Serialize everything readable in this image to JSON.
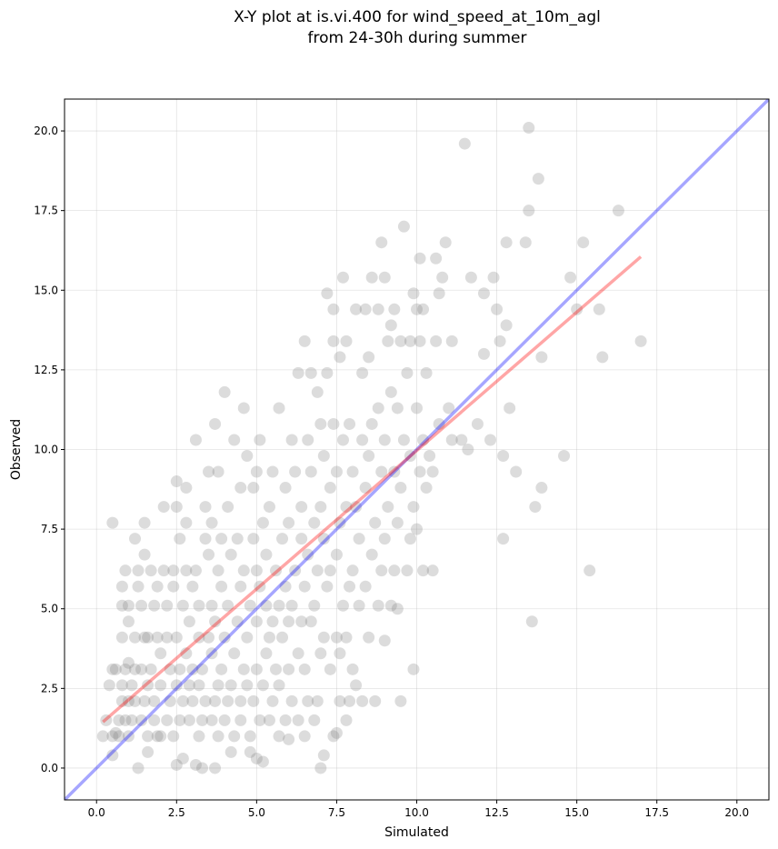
{
  "chart_data": {
    "type": "scatter",
    "title_lines": [
      "X-Y plot at is.vi.400 for wind_speed_at_10m_agl",
      "from 24-30h during summer"
    ],
    "xlabel": "Simulated",
    "ylabel": "Observed",
    "xlim": [
      -1.0,
      21.0
    ],
    "ylim": [
      -1.0,
      21.0
    ],
    "xticks": [
      0.0,
      2.5,
      5.0,
      7.5,
      10.0,
      12.5,
      15.0,
      17.5,
      20.0
    ],
    "yticks": [
      0.0,
      2.5,
      5.0,
      7.5,
      10.0,
      12.5,
      15.0,
      17.5,
      20.0
    ],
    "xtick_labels": [
      "0.0",
      "2.5",
      "5.0",
      "7.5",
      "10.0",
      "12.5",
      "15.0",
      "17.5",
      "20.0"
    ],
    "ytick_labels": [
      "0.0",
      "2.5",
      "5.0",
      "7.5",
      "10.0",
      "12.5",
      "15.0",
      "17.5",
      "20.0"
    ],
    "grid": true,
    "colors": {
      "points": "#808080",
      "one_to_one": "#0000ff",
      "fit": "#ff0000"
    },
    "one_to_one_line": {
      "x": [
        -1.0,
        21.0
      ],
      "y": [
        -1.0,
        21.0
      ]
    },
    "fit_line": {
      "x": [
        0.2,
        17.0
      ],
      "y": [
        1.45,
        16.05
      ]
    },
    "points": [
      [
        0.2,
        1.0
      ],
      [
        0.3,
        1.5
      ],
      [
        0.4,
        2.6
      ],
      [
        0.5,
        0.4
      ],
      [
        0.5,
        1.0
      ],
      [
        0.5,
        3.1
      ],
      [
        0.5,
        7.7
      ],
      [
        0.6,
        1.1
      ],
      [
        0.6,
        3.1
      ],
      [
        0.7,
        1.0
      ],
      [
        0.7,
        1.5
      ],
      [
        0.8,
        2.1
      ],
      [
        0.8,
        2.6
      ],
      [
        0.8,
        4.1
      ],
      [
        0.8,
        5.1
      ],
      [
        0.8,
        5.7
      ],
      [
        0.9,
        6.2
      ],
      [
        0.9,
        3.1
      ],
      [
        0.9,
        1.5
      ],
      [
        1.0,
        2.1
      ],
      [
        1.0,
        4.6
      ],
      [
        1.0,
        5.1
      ],
      [
        1.0,
        3.3
      ],
      [
        1.0,
        1.0
      ],
      [
        1.1,
        2.6
      ],
      [
        1.1,
        1.5
      ],
      [
        1.2,
        2.1
      ],
      [
        1.2,
        4.1
      ],
      [
        1.2,
        7.2
      ],
      [
        1.2,
        3.1
      ],
      [
        1.3,
        0.0
      ],
      [
        1.3,
        5.7
      ],
      [
        1.3,
        6.2
      ],
      [
        1.4,
        1.5
      ],
      [
        1.4,
        3.1
      ],
      [
        1.4,
        5.1
      ],
      [
        1.5,
        4.1
      ],
      [
        1.5,
        6.7
      ],
      [
        1.5,
        7.7
      ],
      [
        1.5,
        2.1
      ],
      [
        1.6,
        0.5
      ],
      [
        1.6,
        1.0
      ],
      [
        1.6,
        2.6
      ],
      [
        1.6,
        4.1
      ],
      [
        1.7,
        3.1
      ],
      [
        1.7,
        6.2
      ],
      [
        1.8,
        1.5
      ],
      [
        1.8,
        5.1
      ],
      [
        1.8,
        2.1
      ],
      [
        1.9,
        1.0
      ],
      [
        1.9,
        4.1
      ],
      [
        1.9,
        5.7
      ],
      [
        2.0,
        2.6
      ],
      [
        2.0,
        3.6
      ],
      [
        2.0,
        1.0
      ],
      [
        2.1,
        6.2
      ],
      [
        2.1,
        8.2
      ],
      [
        2.2,
        1.5
      ],
      [
        2.2,
        4.1
      ],
      [
        2.2,
        5.1
      ],
      [
        2.3,
        2.1
      ],
      [
        2.3,
        3.1
      ],
      [
        2.4,
        1.0
      ],
      [
        2.4,
        5.7
      ],
      [
        2.4,
        6.2
      ],
      [
        2.5,
        0.1
      ],
      [
        2.5,
        2.6
      ],
      [
        2.5,
        4.1
      ],
      [
        2.5,
        9.0
      ],
      [
        2.5,
        8.2
      ],
      [
        2.6,
        1.5
      ],
      [
        2.6,
        3.1
      ],
      [
        2.6,
        7.2
      ],
      [
        2.7,
        0.3
      ],
      [
        2.7,
        2.1
      ],
      [
        2.7,
        5.1
      ],
      [
        2.8,
        3.6
      ],
      [
        2.8,
        6.2
      ],
      [
        2.8,
        8.8
      ],
      [
        2.8,
        7.7
      ],
      [
        2.9,
        1.5
      ],
      [
        2.9,
        4.6
      ],
      [
        2.9,
        2.6
      ],
      [
        3.0,
        2.1
      ],
      [
        3.0,
        3.1
      ],
      [
        3.0,
        5.7
      ],
      [
        3.1,
        0.1
      ],
      [
        3.1,
        6.2
      ],
      [
        3.1,
        10.3
      ],
      [
        3.2,
        1.0
      ],
      [
        3.2,
        2.6
      ],
      [
        3.2,
        4.1
      ],
      [
        3.2,
        5.1
      ],
      [
        3.3,
        0.0
      ],
      [
        3.3,
        1.5
      ],
      [
        3.3,
        3.1
      ],
      [
        3.4,
        2.1
      ],
      [
        3.4,
        7.2
      ],
      [
        3.4,
        8.2
      ],
      [
        3.5,
        4.1
      ],
      [
        3.5,
        6.7
      ],
      [
        3.5,
        9.3
      ],
      [
        3.6,
        1.5
      ],
      [
        3.6,
        3.6
      ],
      [
        3.6,
        5.1
      ],
      [
        3.6,
        7.7
      ],
      [
        3.7,
        0.0
      ],
      [
        3.7,
        2.1
      ],
      [
        3.7,
        4.6
      ],
      [
        3.7,
        10.8
      ],
      [
        3.8,
        1.0
      ],
      [
        3.8,
        2.6
      ],
      [
        3.8,
        6.2
      ],
      [
        3.8,
        9.3
      ],
      [
        3.9,
        3.1
      ],
      [
        3.9,
        5.7
      ],
      [
        3.9,
        7.2
      ],
      [
        4.0,
        1.5
      ],
      [
        4.0,
        4.1
      ],
      [
        4.0,
        11.8
      ],
      [
        4.1,
        2.1
      ],
      [
        4.1,
        5.1
      ],
      [
        4.1,
        8.2
      ],
      [
        4.2,
        0.5
      ],
      [
        4.2,
        2.6
      ],
      [
        4.2,
        6.7
      ],
      [
        4.3,
        1.0
      ],
      [
        4.3,
        3.6
      ],
      [
        4.3,
        10.3
      ],
      [
        4.4,
        4.6
      ],
      [
        4.4,
        7.2
      ],
      [
        4.5,
        1.5
      ],
      [
        4.5,
        2.1
      ],
      [
        4.5,
        5.7
      ],
      [
        4.5,
        8.8
      ],
      [
        4.6,
        3.1
      ],
      [
        4.6,
        6.2
      ],
      [
        4.6,
        11.3
      ],
      [
        4.7,
        2.6
      ],
      [
        4.7,
        4.1
      ],
      [
        4.7,
        9.8
      ],
      [
        4.8,
        0.5
      ],
      [
        4.8,
        1.0
      ],
      [
        4.8,
        5.1
      ],
      [
        4.9,
        2.1
      ],
      [
        4.9,
        7.2
      ],
      [
        4.9,
        8.8
      ],
      [
        5.0,
        0.3
      ],
      [
        5.0,
        3.1
      ],
      [
        5.0,
        4.6
      ],
      [
        5.0,
        6.2
      ],
      [
        5.0,
        9.3
      ],
      [
        5.1,
        1.5
      ],
      [
        5.1,
        5.7
      ],
      [
        5.1,
        10.3
      ],
      [
        5.2,
        0.2
      ],
      [
        5.2,
        2.6
      ],
      [
        5.2,
        7.7
      ],
      [
        5.3,
        3.6
      ],
      [
        5.3,
        5.1
      ],
      [
        5.3,
        6.7
      ],
      [
        5.4,
        1.5
      ],
      [
        5.4,
        4.1
      ],
      [
        5.4,
        8.2
      ],
      [
        5.5,
        2.1
      ],
      [
        5.5,
        4.6
      ],
      [
        5.5,
        9.3
      ],
      [
        5.6,
        3.1
      ],
      [
        5.6,
        6.2
      ],
      [
        5.7,
        1.0
      ],
      [
        5.7,
        2.6
      ],
      [
        5.7,
        5.1
      ],
      [
        5.7,
        11.3
      ],
      [
        5.8,
        4.1
      ],
      [
        5.8,
        7.2
      ],
      [
        5.9,
        1.5
      ],
      [
        5.9,
        5.7
      ],
      [
        5.9,
        8.8
      ],
      [
        6.0,
        0.9
      ],
      [
        6.0,
        3.1
      ],
      [
        6.0,
        4.6
      ],
      [
        6.0,
        7.7
      ],
      [
        6.1,
        2.1
      ],
      [
        6.1,
        5.1
      ],
      [
        6.1,
        10.3
      ],
      [
        6.2,
        6.2
      ],
      [
        6.2,
        9.3
      ],
      [
        6.3,
        1.5
      ],
      [
        6.3,
        3.6
      ],
      [
        6.3,
        12.4
      ],
      [
        6.4,
        4.6
      ],
      [
        6.4,
        7.2
      ],
      [
        6.4,
        8.2
      ],
      [
        6.5,
        1.0
      ],
      [
        6.5,
        3.1
      ],
      [
        6.5,
        5.7
      ],
      [
        6.5,
        13.4
      ],
      [
        6.6,
        2.1
      ],
      [
        6.6,
        6.7
      ],
      [
        6.6,
        10.3
      ],
      [
        6.7,
        4.6
      ],
      [
        6.7,
        9.3
      ],
      [
        6.7,
        12.4
      ],
      [
        6.8,
        1.5
      ],
      [
        6.8,
        5.1
      ],
      [
        6.8,
        7.7
      ],
      [
        6.9,
        2.1
      ],
      [
        6.9,
        6.2
      ],
      [
        6.9,
        11.8
      ],
      [
        7.0,
        0.0
      ],
      [
        7.0,
        3.6
      ],
      [
        7.0,
        8.2
      ],
      [
        7.0,
        10.8
      ],
      [
        7.1,
        0.4
      ],
      [
        7.1,
        4.1
      ],
      [
        7.1,
        7.2
      ],
      [
        7.1,
        9.8
      ],
      [
        7.2,
        5.7
      ],
      [
        7.2,
        12.4
      ],
      [
        7.2,
        14.9
      ],
      [
        7.3,
        3.1
      ],
      [
        7.3,
        6.2
      ],
      [
        7.3,
        8.8
      ],
      [
        7.4,
        1.0
      ],
      [
        7.4,
        10.8
      ],
      [
        7.4,
        13.4
      ],
      [
        7.4,
        14.4
      ],
      [
        7.5,
        1.1
      ],
      [
        7.5,
        4.1
      ],
      [
        7.5,
        6.7
      ],
      [
        7.5,
        9.3
      ],
      [
        7.6,
        2.1
      ],
      [
        7.6,
        3.6
      ],
      [
        7.6,
        7.7
      ],
      [
        7.6,
        12.9
      ],
      [
        7.7,
        5.1
      ],
      [
        7.7,
        10.3
      ],
      [
        7.7,
        15.4
      ],
      [
        7.8,
        1.5
      ],
      [
        7.8,
        4.1
      ],
      [
        7.8,
        8.2
      ],
      [
        7.8,
        13.4
      ],
      [
        7.9,
        2.1
      ],
      [
        7.9,
        5.7
      ],
      [
        7.9,
        10.8
      ],
      [
        8.0,
        3.1
      ],
      [
        8.0,
        6.2
      ],
      [
        8.0,
        9.3
      ],
      [
        8.1,
        2.6
      ],
      [
        8.1,
        8.2
      ],
      [
        8.1,
        14.4
      ],
      [
        8.2,
        5.1
      ],
      [
        8.2,
        7.2
      ],
      [
        8.3,
        2.1
      ],
      [
        8.3,
        10.3
      ],
      [
        8.3,
        12.4
      ],
      [
        8.4,
        5.7
      ],
      [
        8.4,
        8.8
      ],
      [
        8.4,
        14.4
      ],
      [
        8.5,
        4.1
      ],
      [
        8.5,
        9.8
      ],
      [
        8.5,
        12.9
      ],
      [
        8.6,
        6.7
      ],
      [
        8.6,
        10.8
      ],
      [
        8.6,
        15.4
      ],
      [
        8.7,
        2.1
      ],
      [
        8.7,
        7.7
      ],
      [
        8.8,
        5.1
      ],
      [
        8.8,
        11.3
      ],
      [
        8.8,
        14.4
      ],
      [
        8.9,
        6.2
      ],
      [
        8.9,
        9.3
      ],
      [
        8.9,
        16.5
      ],
      [
        9.0,
        4.0
      ],
      [
        9.0,
        7.2
      ],
      [
        9.0,
        10.3
      ],
      [
        9.0,
        15.4
      ],
      [
        9.1,
        8.2
      ],
      [
        9.1,
        13.4
      ],
      [
        9.2,
        5.1
      ],
      [
        9.2,
        11.8
      ],
      [
        9.2,
        13.9
      ],
      [
        9.3,
        6.2
      ],
      [
        9.3,
        9.3
      ],
      [
        9.3,
        14.4
      ],
      [
        9.4,
        7.7
      ],
      [
        9.4,
        5.0
      ],
      [
        9.4,
        11.3
      ],
      [
        9.5,
        2.1
      ],
      [
        9.5,
        8.8
      ],
      [
        9.5,
        13.4
      ],
      [
        9.6,
        10.3
      ],
      [
        9.6,
        17.0
      ],
      [
        9.7,
        6.2
      ],
      [
        9.7,
        12.4
      ],
      [
        9.8,
        7.2
      ],
      [
        9.8,
        9.8
      ],
      [
        9.8,
        13.4
      ],
      [
        9.9,
        3.1
      ],
      [
        9.9,
        8.2
      ],
      [
        9.9,
        14.9
      ],
      [
        10.0,
        7.5
      ],
      [
        10.0,
        11.3
      ],
      [
        10.0,
        14.4
      ],
      [
        10.1,
        9.3
      ],
      [
        10.1,
        13.4
      ],
      [
        10.1,
        16.0
      ],
      [
        10.2,
        6.2
      ],
      [
        10.2,
        10.3
      ],
      [
        10.2,
        14.4
      ],
      [
        10.3,
        8.8
      ],
      [
        10.3,
        12.4
      ],
      [
        10.4,
        9.8
      ],
      [
        10.5,
        6.2
      ],
      [
        10.5,
        9.3
      ],
      [
        10.6,
        13.4
      ],
      [
        10.6,
        16.0
      ],
      [
        10.7,
        10.8
      ],
      [
        10.7,
        14.9
      ],
      [
        10.8,
        15.4
      ],
      [
        10.9,
        16.5
      ],
      [
        11.0,
        11.3
      ],
      [
        11.1,
        10.3
      ],
      [
        11.1,
        13.4
      ],
      [
        11.4,
        10.3
      ],
      [
        11.5,
        19.6
      ],
      [
        11.6,
        10.0
      ],
      [
        11.7,
        15.4
      ],
      [
        11.9,
        10.8
      ],
      [
        12.1,
        14.9
      ],
      [
        12.1,
        13.0
      ],
      [
        12.3,
        10.3
      ],
      [
        12.4,
        15.4
      ],
      [
        12.5,
        14.4
      ],
      [
        12.6,
        13.4
      ],
      [
        12.7,
        7.2
      ],
      [
        12.7,
        9.8
      ],
      [
        12.8,
        16.5
      ],
      [
        12.8,
        13.9
      ],
      [
        12.9,
        11.3
      ],
      [
        13.1,
        9.3
      ],
      [
        13.4,
        16.5
      ],
      [
        13.5,
        17.5
      ],
      [
        13.5,
        20.1
      ],
      [
        13.6,
        4.6
      ],
      [
        13.7,
        8.2
      ],
      [
        13.8,
        18.5
      ],
      [
        13.9,
        12.9
      ],
      [
        13.9,
        8.8
      ],
      [
        14.6,
        9.8
      ],
      [
        14.8,
        15.4
      ],
      [
        15.0,
        14.4
      ],
      [
        15.2,
        16.5
      ],
      [
        15.4,
        6.2
      ],
      [
        15.7,
        14.4
      ],
      [
        15.8,
        12.9
      ],
      [
        16.3,
        17.5
      ],
      [
        17.0,
        13.4
      ]
    ]
  }
}
